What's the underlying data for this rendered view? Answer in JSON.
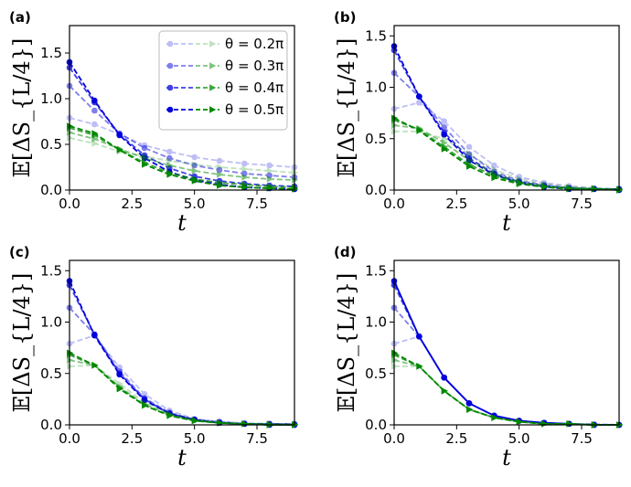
{
  "colors": {
    "blue": "#0000dd",
    "green": "#008800",
    "axis": "#000000"
  },
  "legend": {
    "entries": [
      "θ = 0.2π",
      "θ = 0.3π",
      "θ = 0.4π",
      "θ = 0.5π"
    ],
    "alphas": [
      0.25,
      0.5,
      0.75,
      1.0
    ],
    "placement": "top-right of panel (a)"
  },
  "chart_data": [
    {
      "panel": "(a)",
      "type": "line",
      "xlabel": "t",
      "ylabel": "𝔼[ΔS_{L/4}]",
      "xlim": [
        0,
        9
      ],
      "ylim": [
        0,
        1.8
      ],
      "xticks": [
        "0.0",
        "2.5",
        "5.0",
        "7.5"
      ],
      "yticks": [
        "0.0",
        "0.5",
        "1.0",
        "1.5"
      ],
      "x": [
        0,
        1,
        2,
        3,
        4,
        5,
        6,
        7,
        8,
        9
      ],
      "series": [
        {
          "name": "θ = 0.2π",
          "color": "blue",
          "marker": "circle",
          "values": [
            0.79,
            0.72,
            0.61,
            0.49,
            0.42,
            0.36,
            0.32,
            0.29,
            0.27,
            0.25
          ]
        },
        {
          "name": "θ = 0.3π",
          "color": "blue",
          "marker": "circle",
          "values": [
            1.14,
            0.87,
            0.62,
            0.46,
            0.35,
            0.27,
            0.22,
            0.18,
            0.16,
            0.14
          ]
        },
        {
          "name": "θ = 0.4π",
          "color": "blue",
          "marker": "circle",
          "values": [
            1.34,
            0.96,
            0.61,
            0.38,
            0.24,
            0.15,
            0.1,
            0.07,
            0.05,
            0.04
          ]
        },
        {
          "name": "θ = 0.5π",
          "color": "blue",
          "marker": "circle",
          "values": [
            1.4,
            0.98,
            0.6,
            0.35,
            0.2,
            0.11,
            0.06,
            0.03,
            0.02,
            0.01
          ]
        },
        {
          "name": "θ = 0.2π",
          "color": "green",
          "marker": "triangle",
          "values": [
            0.57,
            0.51,
            0.42,
            0.37,
            0.32,
            0.28,
            0.25,
            0.23,
            0.21,
            0.19
          ]
        },
        {
          "name": "θ = 0.3π",
          "color": "green",
          "marker": "triangle",
          "values": [
            0.63,
            0.56,
            0.45,
            0.35,
            0.27,
            0.21,
            0.17,
            0.14,
            0.12,
            0.11
          ]
        },
        {
          "name": "θ = 0.4π",
          "color": "green",
          "marker": "triangle",
          "values": [
            0.68,
            0.6,
            0.44,
            0.3,
            0.19,
            0.12,
            0.08,
            0.06,
            0.04,
            0.03
          ]
        },
        {
          "name": "θ = 0.5π",
          "color": "green",
          "marker": "triangle",
          "values": [
            0.7,
            0.62,
            0.44,
            0.28,
            0.17,
            0.1,
            0.05,
            0.03,
            0.02,
            0.01
          ]
        }
      ]
    },
    {
      "panel": "(b)",
      "type": "line",
      "xlabel": "t",
      "ylabel": "𝔼[ΔS_{L/4}]",
      "xlim": [
        0,
        9
      ],
      "ylim": [
        0,
        1.6
      ],
      "xticks": [
        "0.0",
        "2.5",
        "5.0",
        "7.5"
      ],
      "yticks": [
        "0.0",
        "0.5",
        "1.0",
        "1.5"
      ],
      "x": [
        0,
        1,
        2,
        3,
        4,
        5,
        6,
        7,
        8,
        9
      ],
      "series": [
        {
          "name": "θ = 0.2π",
          "color": "blue",
          "marker": "circle",
          "values": [
            0.79,
            0.85,
            0.67,
            0.42,
            0.24,
            0.13,
            0.07,
            0.04,
            0.02,
            0.01
          ]
        },
        {
          "name": "θ = 0.3π",
          "color": "blue",
          "marker": "circle",
          "values": [
            1.14,
            0.91,
            0.61,
            0.35,
            0.18,
            0.09,
            0.05,
            0.02,
            0.01,
            0.01
          ]
        },
        {
          "name": "θ = 0.4π",
          "color": "blue",
          "marker": "circle",
          "values": [
            1.36,
            0.91,
            0.56,
            0.31,
            0.16,
            0.08,
            0.04,
            0.02,
            0.01,
            0.01
          ]
        },
        {
          "name": "θ = 0.5π",
          "color": "blue",
          "marker": "circle",
          "values": [
            1.4,
            0.91,
            0.54,
            0.29,
            0.15,
            0.07,
            0.03,
            0.01,
            0.01,
            0.0
          ]
        },
        {
          "name": "θ = 0.2π",
          "color": "green",
          "marker": "triangle",
          "values": [
            0.57,
            0.57,
            0.5,
            0.35,
            0.2,
            0.11,
            0.06,
            0.03,
            0.02,
            0.01
          ]
        },
        {
          "name": "θ = 0.3π",
          "color": "green",
          "marker": "triangle",
          "values": [
            0.63,
            0.6,
            0.46,
            0.29,
            0.16,
            0.08,
            0.04,
            0.02,
            0.01,
            0.01
          ]
        },
        {
          "name": "θ = 0.4π",
          "color": "green",
          "marker": "triangle",
          "values": [
            0.68,
            0.59,
            0.42,
            0.25,
            0.14,
            0.07,
            0.03,
            0.02,
            0.01,
            0.0
          ]
        },
        {
          "name": "θ = 0.5π",
          "color": "green",
          "marker": "triangle",
          "values": [
            0.7,
            0.58,
            0.4,
            0.23,
            0.12,
            0.06,
            0.03,
            0.01,
            0.01,
            0.0
          ]
        }
      ]
    },
    {
      "panel": "(c)",
      "type": "line",
      "xlabel": "t",
      "ylabel": "𝔼[ΔS_{L/4}]",
      "xlim": [
        0,
        9
      ],
      "ylim": [
        0,
        1.6
      ],
      "xticks": [
        "0.0",
        "2.5",
        "5.0",
        "7.5"
      ],
      "yticks": [
        "0.0",
        "0.5",
        "1.0",
        "1.5"
      ],
      "x": [
        0,
        1,
        2,
        3,
        4,
        5,
        6,
        7,
        8,
        9
      ],
      "series": [
        {
          "name": "θ = 0.2π",
          "color": "blue",
          "marker": "circle",
          "values": [
            0.79,
            0.87,
            0.56,
            0.3,
            0.14,
            0.06,
            0.03,
            0.02,
            0.01,
            0.01
          ]
        },
        {
          "name": "θ = 0.3π",
          "color": "blue",
          "marker": "circle",
          "values": [
            1.14,
            0.88,
            0.52,
            0.26,
            0.12,
            0.05,
            0.03,
            0.01,
            0.01,
            0.01
          ]
        },
        {
          "name": "θ = 0.4π",
          "color": "blue",
          "marker": "circle",
          "values": [
            1.36,
            0.88,
            0.5,
            0.25,
            0.11,
            0.05,
            0.02,
            0.01,
            0.01,
            0.0
          ]
        },
        {
          "name": "θ = 0.5π",
          "color": "blue",
          "marker": "circle",
          "values": [
            1.4,
            0.87,
            0.49,
            0.24,
            0.11,
            0.05,
            0.02,
            0.01,
            0.0,
            0.0
          ]
        },
        {
          "name": "θ = 0.2π",
          "color": "green",
          "marker": "triangle",
          "values": [
            0.57,
            0.58,
            0.4,
            0.22,
            0.11,
            0.05,
            0.02,
            0.01,
            0.01,
            0.01
          ]
        },
        {
          "name": "θ = 0.3π",
          "color": "green",
          "marker": "triangle",
          "values": [
            0.63,
            0.58,
            0.37,
            0.2,
            0.1,
            0.04,
            0.02,
            0.01,
            0.01,
            0.0
          ]
        },
        {
          "name": "θ = 0.4π",
          "color": "green",
          "marker": "triangle",
          "values": [
            0.68,
            0.58,
            0.36,
            0.19,
            0.09,
            0.04,
            0.02,
            0.01,
            0.0,
            0.0
          ]
        },
        {
          "name": "θ = 0.5π",
          "color": "green",
          "marker": "triangle",
          "values": [
            0.7,
            0.58,
            0.35,
            0.19,
            0.09,
            0.04,
            0.02,
            0.01,
            0.0,
            0.0
          ]
        }
      ]
    },
    {
      "panel": "(d)",
      "type": "line",
      "xlabel": "t",
      "ylabel": "𝔼[ΔS_{L/4}]",
      "xlim": [
        0,
        9
      ],
      "ylim": [
        0,
        1.6
      ],
      "xticks": [
        "0.0",
        "2.5",
        "5.0",
        "7.5"
      ],
      "yticks": [
        "0.0",
        "0.5",
        "1.0",
        "1.5"
      ],
      "x": [
        0,
        1,
        2,
        3,
        4,
        5,
        6,
        7,
        8,
        9
      ],
      "series": [
        {
          "name": "θ = 0.2π",
          "color": "blue",
          "marker": "circle",
          "values": [
            0.79,
            0.86,
            0.46,
            0.21,
            0.09,
            0.04,
            0.02,
            0.01,
            0.01,
            0.0
          ]
        },
        {
          "name": "θ = 0.3π",
          "color": "blue",
          "marker": "circle",
          "values": [
            1.14,
            0.86,
            0.46,
            0.21,
            0.09,
            0.04,
            0.02,
            0.01,
            0.0,
            0.0
          ]
        },
        {
          "name": "θ = 0.4π",
          "color": "blue",
          "marker": "circle",
          "values": [
            1.36,
            0.86,
            0.46,
            0.21,
            0.09,
            0.04,
            0.02,
            0.01,
            0.0,
            0.0
          ]
        },
        {
          "name": "θ = 0.5π",
          "color": "blue",
          "marker": "circle",
          "values": [
            1.4,
            0.86,
            0.46,
            0.21,
            0.09,
            0.04,
            0.02,
            0.01,
            0.0,
            0.0
          ]
        },
        {
          "name": "θ = 0.2π",
          "color": "green",
          "marker": "triangle",
          "values": [
            0.57,
            0.57,
            0.33,
            0.15,
            0.07,
            0.03,
            0.01,
            0.01,
            0.0,
            0.0
          ]
        },
        {
          "name": "θ = 0.3π",
          "color": "green",
          "marker": "triangle",
          "values": [
            0.63,
            0.57,
            0.33,
            0.15,
            0.07,
            0.03,
            0.01,
            0.01,
            0.0,
            0.0
          ]
        },
        {
          "name": "θ = 0.4π",
          "color": "green",
          "marker": "triangle",
          "values": [
            0.68,
            0.57,
            0.33,
            0.15,
            0.07,
            0.03,
            0.01,
            0.01,
            0.0,
            0.0
          ]
        },
        {
          "name": "θ = 0.5π",
          "color": "green",
          "marker": "triangle",
          "values": [
            0.7,
            0.57,
            0.33,
            0.15,
            0.07,
            0.03,
            0.01,
            0.01,
            0.0,
            0.0
          ]
        }
      ]
    }
  ]
}
